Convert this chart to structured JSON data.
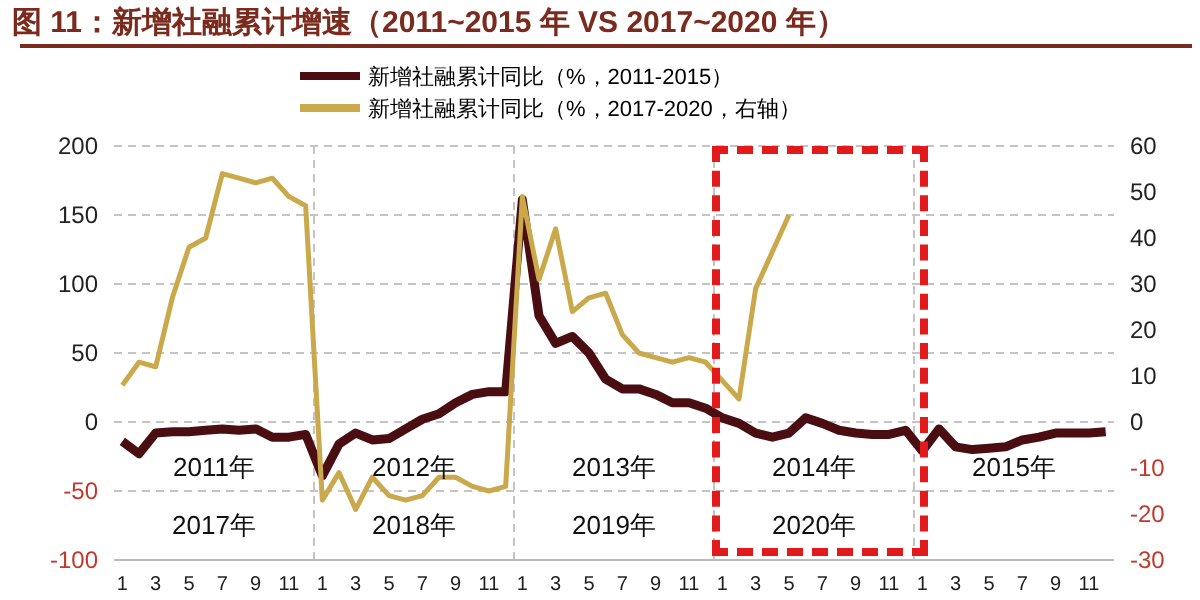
{
  "chart_data": {
    "type": "line",
    "title": "图 11：新增社融累计增速（2011~2015 年 VS 2017~2020 年）",
    "categories": [
      "1",
      null,
      "3",
      null,
      "5",
      null,
      "7",
      null,
      "9",
      null,
      "11",
      null,
      "1",
      null,
      "3",
      null,
      "5",
      null,
      "7",
      null,
      "9",
      null,
      "11",
      null,
      "1",
      null,
      "3",
      null,
      "5",
      null,
      "7",
      null,
      "9",
      null,
      "11",
      null,
      "1",
      null,
      "3",
      null,
      "5",
      null,
      "7",
      null,
      "9",
      null,
      "11",
      null,
      "1",
      null,
      "3",
      null,
      "5",
      null,
      "7",
      null,
      "9",
      null,
      "11",
      null
    ],
    "series": [
      {
        "name": "新增社融累计同比（%，2011-2015）",
        "color": "#4a0e12",
        "values": [
          -14,
          -23,
          -8,
          -7,
          -7,
          -6,
          -5,
          -6,
          -5,
          -11,
          -11,
          -9,
          -39,
          -16,
          -8,
          -13,
          -12,
          -5,
          2,
          6,
          14,
          20,
          22,
          22,
          161,
          77,
          57,
          62,
          50,
          31,
          24,
          24,
          20,
          14,
          14,
          10,
          3,
          -1,
          -8,
          -11,
          -8,
          3,
          -1,
          -6,
          -8,
          -9,
          -9,
          -6,
          -21,
          -5,
          -18,
          -20,
          -19,
          -18,
          -13,
          -11,
          -8,
          -8,
          -8,
          -7
        ]
      },
      {
        "name": "新增社融累计同比（%，2017-2020，右轴）",
        "color": "#c9a94c",
        "axis": "y2",
        "values": [
          8,
          13,
          12,
          27,
          38,
          40,
          54,
          53,
          52,
          53,
          49,
          47,
          -17,
          -11,
          -19,
          -12,
          -16,
          -17,
          -16,
          -12,
          -12,
          -14,
          -15,
          -14,
          49,
          31,
          42,
          24,
          27,
          28,
          19,
          15,
          14,
          13,
          14,
          13,
          9,
          5,
          29,
          37,
          45,
          null,
          null,
          null,
          null,
          null,
          null,
          null,
          null,
          null,
          null,
          null,
          null,
          null,
          null,
          null,
          null,
          null,
          null,
          null
        ]
      }
    ],
    "ylim": [
      -100,
      200
    ],
    "yticks": [
      -100,
      -50,
      0,
      50,
      100,
      150,
      200
    ],
    "y2lim": [
      -30,
      60
    ],
    "y2ticks": [
      -30,
      -20,
      -10,
      0,
      10,
      20,
      30,
      40,
      50,
      60
    ],
    "grid": "y",
    "legend": "top",
    "annotations": [
      "2011年",
      "2012年",
      "2013年",
      "2014年",
      "2015年",
      "2017年",
      "2018年",
      "2019年",
      "2020年"
    ]
  }
}
